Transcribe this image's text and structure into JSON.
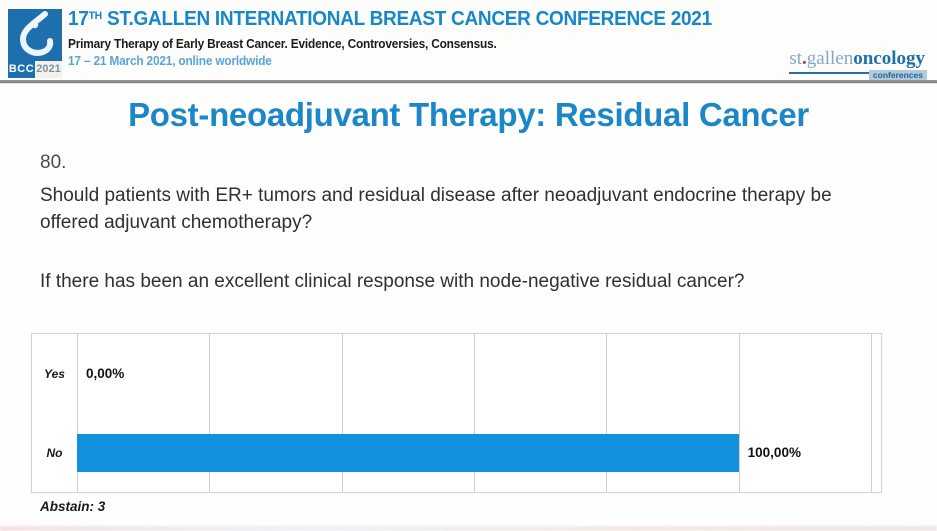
{
  "header": {
    "logo": {
      "bcc": "BCC",
      "year": "2021"
    },
    "title_prefix": "17",
    "title_sup": "TH",
    "title_rest": " ST.GALLEN INTERNATIONAL BREAST CANCER CONFERENCE 2021",
    "subtitle": "Primary Therapy of Early Breast Cancer. Evidence, Controversies, Consensus.",
    "date_line": "17 – 21 March 2021, online worldwide",
    "right_logo": {
      "part_st": "st",
      "part_dot": ".",
      "part_gallen": "gallen",
      "part_oncology": "oncology",
      "part_conferences": "conferences"
    }
  },
  "slide": {
    "title": "Post-neoadjuvant Therapy: Residual Cancer",
    "question_number": "80.",
    "question": "Should patients with ER+ tumors and residual disease after neoadjuvant endocrine therapy be offered adjuvant chemotherapy?",
    "sub_question": "If there has been an excellent clinical response with node-negative residual cancer?",
    "abstain_note": "Abstain: 3"
  },
  "chart_data": {
    "type": "bar",
    "orientation": "horizontal",
    "categories": [
      "Yes",
      "No"
    ],
    "values": [
      0,
      100
    ],
    "value_labels": [
      "0,00%",
      "100,00%"
    ],
    "axis_max": 120,
    "gridline_interval": 20,
    "grid": true,
    "legend": false,
    "bar_color": "#1092df",
    "title": "",
    "xlabel": "",
    "ylabel": ""
  },
  "colors": {
    "accent_blue": "#1b87c9",
    "bar_blue": "#1092df",
    "header_blue": "#1787c9",
    "date_blue": "#5aa4d6",
    "logo_blue": "#1d6fae",
    "gridline_gray": "#cfcfcf"
  }
}
